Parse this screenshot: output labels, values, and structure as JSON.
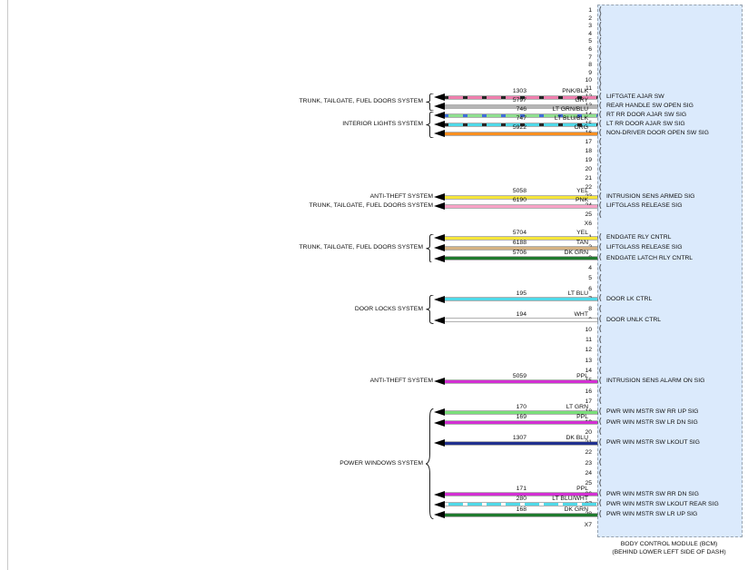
{
  "page": {
    "background": "#ffffff"
  },
  "bcm": {
    "caption_line1": "BODY CONTROL MODULE (BCM)",
    "caption_line2": "(BEHIND LOWER LEFT SIDE OF DASH)",
    "box_fill": "#dbeafc",
    "box_border": "#97a3b0",
    "connectors": [
      {
        "id": "X6",
        "rows": [
          {
            "pin": "1"
          },
          {
            "pin": "2"
          },
          {
            "pin": "3"
          },
          {
            "pin": "4"
          },
          {
            "pin": "5"
          },
          {
            "pin": "6"
          },
          {
            "pin": "7"
          },
          {
            "pin": "8"
          },
          {
            "pin": "9"
          },
          {
            "pin": "10"
          },
          {
            "pin": "11"
          },
          {
            "pin": "12",
            "signal": "LIFTGATE AJAR SW",
            "wire": {
              "circuit": "1303",
              "color": "PNK/BLK",
              "hex": "#f07fae",
              "stripe": "#262626"
            }
          },
          {
            "pin": "13",
            "signal": "REAR HANDLE SW OPEN SIG",
            "wire": {
              "circuit": "5797",
              "color": "GRY",
              "hex": "#b5b5b5"
            }
          },
          {
            "pin": "14",
            "signal": "RT RR DOOR AJAR SW SIG",
            "wire": {
              "circuit": "746",
              "color": "LT GRN/BLU",
              "hex": "#8fe08f",
              "stripe": "#3f6fd8"
            }
          },
          {
            "pin": "15",
            "signal": "LT RR DOOR AJAR SW SIG",
            "wire": {
              "circuit": "747",
              "color": "LT BLU/BLK",
              "hex": "#4fd9e8",
              "stripe": "#262626"
            }
          },
          {
            "pin": "16",
            "signal": "NON-DRIVER DOOR OPEN SW SIG",
            "wire": {
              "circuit": "5922",
              "color": "ORG",
              "hex": "#fd8f20"
            }
          },
          {
            "pin": "17"
          },
          {
            "pin": "18"
          },
          {
            "pin": "19"
          },
          {
            "pin": "20"
          },
          {
            "pin": "21"
          },
          {
            "pin": "22"
          },
          {
            "pin": "23",
            "signal": "INTRUSION SENS ARMED SIG",
            "wire": {
              "circuit": "5058",
              "color": "YEL",
              "hex": "#f6e63a"
            }
          },
          {
            "pin": "24",
            "signal": "LIFTGLASS RELEASE SIG",
            "wire": {
              "circuit": "6190",
              "color": "PNK",
              "hex": "#f8a3c6"
            }
          },
          {
            "pin": "25"
          },
          {
            "pin": "X6",
            "connector_label": true
          }
        ]
      },
      {
        "id": "X7",
        "rows": [
          {
            "pin": "1",
            "signal": "ENDGATE RLY CNTRL",
            "wire": {
              "circuit": "5704",
              "color": "YEL",
              "hex": "#f6e63a"
            }
          },
          {
            "pin": "2",
            "signal": "LIFTGLASS RELEASE SIG",
            "wire": {
              "circuit": "6188",
              "color": "TAN",
              "hex": "#d4b183"
            }
          },
          {
            "pin": "3",
            "signal": "ENDGATE LATCH RLY CNTRL",
            "wire": {
              "circuit": "5706",
              "color": "DK GRN",
              "hex": "#1f7a2e"
            }
          },
          {
            "pin": "4"
          },
          {
            "pin": "5"
          },
          {
            "pin": "6"
          },
          {
            "pin": "7",
            "signal": "DOOR LK CTRL",
            "wire": {
              "circuit": "195",
              "color": "LT BLU",
              "hex": "#4fd9e8"
            }
          },
          {
            "pin": "8"
          },
          {
            "pin": "9",
            "signal": "DOOR UNLK CTRL",
            "wire": {
              "circuit": "194",
              "color": "WHT",
              "hex": "#ffffff"
            }
          },
          {
            "pin": "10"
          },
          {
            "pin": "11"
          },
          {
            "pin": "12"
          },
          {
            "pin": "13"
          },
          {
            "pin": "14"
          },
          {
            "pin": "15",
            "signal": "INTRUSION SENS ALARM ON SIG",
            "wire": {
              "circuit": "5059",
              "color": "PPL",
              "hex": "#d32fd3"
            }
          },
          {
            "pin": "16"
          },
          {
            "pin": "17"
          },
          {
            "pin": "18",
            "signal": "PWR WIN MSTR SW RR UP SIG",
            "wire": {
              "circuit": "170",
              "color": "LT GRN",
              "hex": "#79df79"
            }
          },
          {
            "pin": "19",
            "signal": "PWR WIN MSTR SW LR DN SIG",
            "wire": {
              "circuit": "169",
              "color": "PPL",
              "hex": "#d32fd3"
            }
          },
          {
            "pin": "20"
          },
          {
            "pin": "21",
            "signal": "PWR WIN MSTR SW LKOUT SIG",
            "wire": {
              "circuit": "1307",
              "color": "DK BLU",
              "hex": "#20308f"
            }
          },
          {
            "pin": "22"
          },
          {
            "pin": "23"
          },
          {
            "pin": "24"
          },
          {
            "pin": "25"
          },
          {
            "pin": "26",
            "signal": "PWR WIN MSTR SW RR DN SIG",
            "wire": {
              "circuit": "171",
              "color": "PPL",
              "hex": "#d32fd3"
            }
          },
          {
            "pin": "27",
            "signal": "PWR WIN MSTR SW LKOUT REAR SIG",
            "wire": {
              "circuit": "280",
              "color": "LT BLU/WHT",
              "hex": "#4fd9e8",
              "stripe": "#ffffff"
            }
          },
          {
            "pin": "28",
            "signal": "PWR WIN MSTR SW LR UP SIG",
            "wire": {
              "circuit": "168",
              "color": "DK GRN",
              "hex": "#1f7a2e"
            }
          },
          {
            "pin": "X7",
            "connector_label": true
          }
        ]
      }
    ]
  },
  "groups": [
    {
      "system": "TRUNK, TAILGATE, FUEL DOORS SYSTEM",
      "connector": 0,
      "from_pin": "12",
      "to_pin": "13",
      "brace": true
    },
    {
      "system": "INTERIOR LIGHTS SYSTEM",
      "connector": 0,
      "from_pin": "14",
      "to_pin": "16",
      "brace": true
    },
    {
      "system": "ANTI-THEFT SYSTEM",
      "connector": 0,
      "from_pin": "23",
      "to_pin": "23",
      "brace": false
    },
    {
      "system": "TRUNK, TAILGATE, FUEL DOORS SYSTEM",
      "connector": 0,
      "from_pin": "24",
      "to_pin": "24",
      "brace": false
    },
    {
      "system": "TRUNK, TAILGATE, FUEL DOORS SYSTEM",
      "connector": 1,
      "from_pin": "1",
      "to_pin": "3",
      "brace": true
    },
    {
      "system": "DOOR LOCKS SYSTEM",
      "connector": 1,
      "from_pin": "7",
      "to_pin": "9",
      "brace": true
    },
    {
      "system": "ANTI-THEFT SYSTEM",
      "connector": 1,
      "from_pin": "15",
      "to_pin": "15",
      "brace": false
    },
    {
      "system": "POWER WINDOWS SYSTEM",
      "connector": 1,
      "from_pin": "18",
      "to_pin": "28",
      "brace": true
    }
  ]
}
